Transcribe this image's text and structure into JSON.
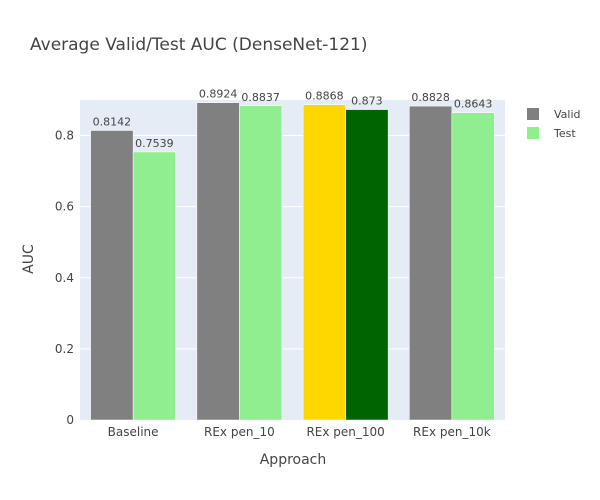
{
  "chart_data": {
    "type": "bar",
    "title": "Average Valid/Test AUC (DenseNet-121)",
    "xlabel": "Approach",
    "ylabel": "AUC",
    "categories": [
      "Baseline",
      "REx pen_10",
      "REx pen_100",
      "REx pen_10k"
    ],
    "ylim": [
      0,
      0.9
    ],
    "yticks": [
      0,
      0.2,
      0.4,
      0.6,
      0.8
    ],
    "ytick_labels": [
      "0",
      "0.2",
      "0.4",
      "0.6",
      "0.8"
    ],
    "grid": true,
    "legend_position": "top-right",
    "series": [
      {
        "name": "Valid",
        "values": [
          0.8142,
          0.8924,
          0.8868,
          0.8828
        ],
        "labels": [
          "0.8142",
          "0.8924",
          "0.8868",
          "0.8828"
        ],
        "color": "#808080",
        "point_colors": [
          "#808080",
          "#808080",
          "#FFD700",
          "#808080"
        ]
      },
      {
        "name": "Test",
        "values": [
          0.7539,
          0.8837,
          0.873,
          0.8643
        ],
        "labels": [
          "0.7539",
          "0.8837",
          "0.873",
          "0.8643"
        ],
        "color": "#90EE90",
        "point_colors": [
          "#90EE90",
          "#90EE90",
          "#006400",
          "#90EE90"
        ]
      }
    ],
    "colors": {
      "plot_background": "#E5ECF6",
      "grid": "#FFFFFF",
      "text": "#444444"
    }
  }
}
